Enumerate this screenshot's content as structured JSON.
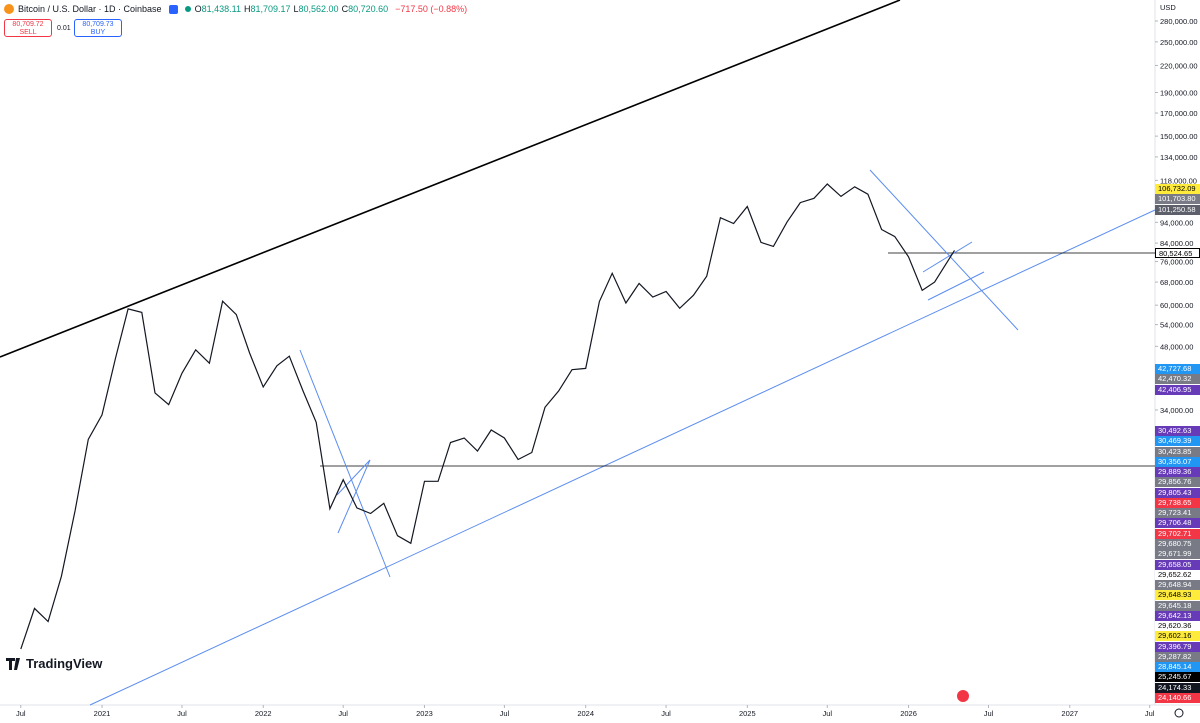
{
  "header": {
    "symbol": "Bitcoin / U.S. Dollar · 1D · Coinbase",
    "ohlc": [
      {
        "label": "O",
        "value": "81,438.11"
      },
      {
        "label": "H",
        "value": "81,709.17"
      },
      {
        "label": "L",
        "value": "80,562.00"
      },
      {
        "label": "C",
        "value": "80,720.60"
      }
    ],
    "change": "−717.50 (−0.88%)",
    "sell": {
      "price": "80,709.72",
      "label": "SELL"
    },
    "spread": "0.01",
    "buy": {
      "price": "80,709.73",
      "label": "BUY"
    }
  },
  "price_axis": {
    "currency": "USD",
    "log": true,
    "range": [
      6870,
      313700
    ],
    "ticks": [
      {
        "value": 280000,
        "label": "280,000.00"
      },
      {
        "value": 250000,
        "label": "250,000.00"
      },
      {
        "value": 220000,
        "label": "220,000.00"
      },
      {
        "value": 190000,
        "label": "190,000.00"
      },
      {
        "value": 170000,
        "label": "170,000.00"
      },
      {
        "value": 150000,
        "label": "150,000.00"
      },
      {
        "value": 134000,
        "label": "134,000.00"
      },
      {
        "value": 118000,
        "label": "118,000.00"
      },
      {
        "value": 94000,
        "label": "94,000.00"
      },
      {
        "value": 84000,
        "label": "84,000.00"
      },
      {
        "value": 76000,
        "label": "76,000.00"
      },
      {
        "value": 68000,
        "label": "68,000.00"
      },
      {
        "value": 60000,
        "label": "60,000.00"
      },
      {
        "value": 54000,
        "label": "54,000.00"
      },
      {
        "value": 48000,
        "label": "48,000.00"
      },
      {
        "value": 34000,
        "label": "34,000.00"
      }
    ]
  },
  "time_axis": {
    "range": [
      "2020-05-15",
      "2027-07-13"
    ],
    "ticks": [
      {
        "value": "2020-07-01",
        "label": "Jul"
      },
      {
        "value": "2021-01-01",
        "label": "2021"
      },
      {
        "value": "2021-07-01",
        "label": "Jul"
      },
      {
        "value": "2022-01-01",
        "label": "2022"
      },
      {
        "value": "2022-07-01",
        "label": "Jul"
      },
      {
        "value": "2023-01-01",
        "label": "2023"
      },
      {
        "value": "2023-07-01",
        "label": "Jul"
      },
      {
        "value": "2024-01-01",
        "label": "2024"
      },
      {
        "value": "2024-07-01",
        "label": "Jul"
      },
      {
        "value": "2025-01-01",
        "label": "2025"
      },
      {
        "value": "2025-07-01",
        "label": "Jul"
      },
      {
        "value": "2026-01-01",
        "label": "2026"
      },
      {
        "value": "2026-07-01",
        "label": "Jul"
      },
      {
        "value": "2027-01-01",
        "label": "2027"
      },
      {
        "value": "2027-07-01",
        "label": "Jul"
      }
    ]
  },
  "price_series": {
    "x": [
      "2020-07-01",
      "2020-08-01",
      "2020-09-01",
      "2020-10-01",
      "2020-11-01",
      "2020-12-01",
      "2021-01-01",
      "2021-02-01",
      "2021-03-01",
      "2021-04-01",
      "2021-05-01",
      "2021-06-01",
      "2021-07-01",
      "2021-08-01",
      "2021-09-01",
      "2021-10-01",
      "2021-11-01",
      "2021-12-01",
      "2022-01-01",
      "2022-02-01",
      "2022-03-01",
      "2022-04-01",
      "2022-05-01",
      "2022-06-01",
      "2022-07-01",
      "2022-08-01",
      "2022-09-01",
      "2022-10-01",
      "2022-11-01",
      "2022-12-01",
      "2023-01-01",
      "2023-02-01",
      "2023-03-01",
      "2023-04-01",
      "2023-05-01",
      "2023-06-01",
      "2023-07-01",
      "2023-08-01",
      "2023-09-01",
      "2023-10-01",
      "2023-11-01",
      "2023-12-01",
      "2024-01-01",
      "2024-02-01",
      "2024-03-01",
      "2024-04-01",
      "2024-05-01",
      "2024-06-01",
      "2024-07-01",
      "2024-08-01",
      "2024-09-01",
      "2024-10-01",
      "2024-11-01",
      "2024-12-01",
      "2025-01-01",
      "2025-02-01",
      "2025-03-01",
      "2025-04-01",
      "2025-05-01",
      "2025-06-01",
      "2025-07-01",
      "2025-08-01",
      "2025-09-01",
      "2025-10-01",
      "2025-11-01",
      "2025-12-01",
      "2026-01-01",
      "2026-02-01",
      "2026-03-01",
      "2026-04-15"
    ],
    "values": [
      9300,
      11600,
      10800,
      13800,
      19700,
      29000,
      33100,
      45200,
      58800,
      57700,
      37300,
      35000,
      41500,
      47100,
      43800,
      61300,
      57000,
      46300,
      38500,
      43200,
      45500,
      37700,
      31800,
      19900,
      23300,
      20000,
      19400,
      20500,
      17200,
      16500,
      23100,
      23100,
      28500,
      29200,
      27200,
      30500,
      29200,
      26000,
      27000,
      34500,
      37700,
      42300,
      42600,
      61200,
      71300,
      60700,
      67500,
      62700,
      64600,
      59000,
      63300,
      70200,
      96400,
      93400,
      102400,
      84300,
      82500,
      94200,
      104600,
      107100,
      115700,
      108200,
      114000,
      109500,
      90400,
      87000,
      78000,
      65000,
      68000,
      80720
    ]
  },
  "badges": [
    [
      {
        "label": "106,732.09",
        "color": "#ffeb3b",
        "text": "#000000"
      },
      {
        "label": "101,703.80",
        "color": "#787b86",
        "text": "#ffffff"
      },
      {
        "label": "101,250.58",
        "color": "#5d606b",
        "text": "#ffffff"
      }
    ],
    [
      {
        "label": "80,524.65",
        "color": "#ffffff",
        "text": "#000000"
      }
    ],
    [
      {
        "label": "42,727.68",
        "color": "#2196f3",
        "text": "#ffffff"
      },
      {
        "label": "42,470.32",
        "color": "#787b86",
        "text": "#ffffff"
      },
      {
        "label": "42,406.95",
        "color": "#673ab7",
        "text": "#ffffff"
      }
    ],
    [
      {
        "label": "30,492.63",
        "color": "#673ab7",
        "text": "#ffffff"
      },
      {
        "label": "30,469.39",
        "color": "#2196f3",
        "text": "#ffffff"
      },
      {
        "label": "30,423.85",
        "color": "#787b86",
        "text": "#ffffff"
      },
      {
        "label": "30,356.07",
        "color": "#2196f3",
        "text": "#ffffff"
      },
      {
        "label": "29,889.36",
        "color": "#673ab7",
        "text": "#ffffff"
      },
      {
        "label": "29,856.76",
        "color": "#787b86",
        "text": "#ffffff"
      },
      {
        "label": "29,805.43",
        "color": "#673ab7",
        "text": "#ffffff"
      },
      {
        "label": "29,738.65",
        "color": "#f23645",
        "text": "#ffffff"
      },
      {
        "label": "29,723.41",
        "color": "#787b86",
        "text": "#ffffff"
      },
      {
        "label": "29,706.48",
        "color": "#673ab7",
        "text": "#ffffff"
      },
      {
        "label": "29,702.71",
        "color": "#f23645",
        "text": "#ffffff"
      },
      {
        "label": "29,680.75",
        "color": "#787b86",
        "text": "#ffffff"
      },
      {
        "label": "29,671.99",
        "color": "#787b86",
        "text": "#ffffff"
      },
      {
        "label": "29,658.05",
        "color": "#673ab7",
        "text": "#ffffff"
      },
      {
        "label": "29,652.62",
        "color": "#ffffff",
        "text": "#000000"
      },
      {
        "label": "29,648.94",
        "color": "#787b86",
        "text": "#ffffff"
      },
      {
        "label": "29,648.93",
        "color": "#ffeb3b",
        "text": "#000000"
      },
      {
        "label": "29,645.18",
        "color": "#787b86",
        "text": "#ffffff"
      },
      {
        "label": "29,642.13",
        "color": "#673ab7",
        "text": "#ffffff"
      },
      {
        "label": "29,620.36",
        "color": "#ffffff",
        "text": "#000000"
      },
      {
        "label": "29,602.16",
        "color": "#ffeb3b",
        "text": "#000000"
      },
      {
        "label": "29,396.79",
        "color": "#673ab7",
        "text": "#ffffff"
      },
      {
        "label": "29,287.82",
        "color": "#787b86",
        "text": "#ffffff"
      },
      {
        "label": "28,845.14",
        "color": "#2196f3",
        "text": "#ffffff"
      },
      {
        "label": "25,245.67",
        "color": "#000000",
        "text": "#ffffff"
      },
      {
        "label": "24,174.33",
        "color": "#131722",
        "text": "#ffffff"
      },
      {
        "label": "24,140.66",
        "color": "#f23645",
        "text": "#ffffff"
      }
    ]
  ],
  "brand": "TradingView"
}
